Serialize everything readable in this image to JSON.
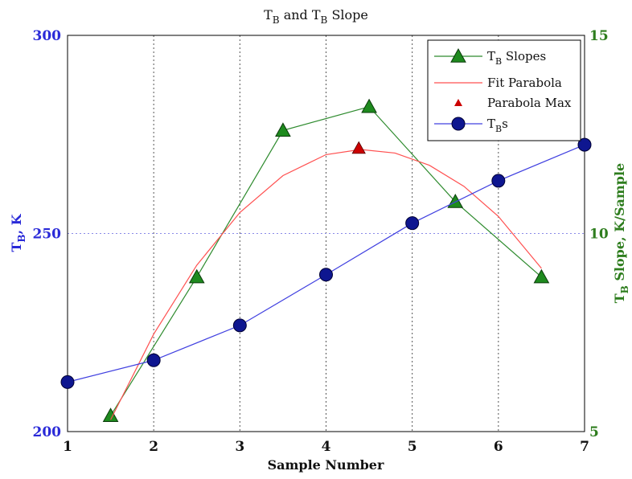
{
  "chart_data": {
    "type": "line",
    "title": {
      "main": "T",
      "sub": "B",
      "mid": " and T",
      "sub2": "B",
      "end": " Slope"
    },
    "xlabel": "Sample Number",
    "ylabel_left": {
      "main": "T",
      "sub": "B",
      "end": ", K"
    },
    "ylabel_right": {
      "main": "T",
      "sub": "B",
      "end": " Slope, K/Sample"
    },
    "xlim": [
      1,
      7
    ],
    "ylim_left": [
      200,
      300
    ],
    "ylim_right": [
      5,
      15
    ],
    "x_ticks": [
      "1",
      "2",
      "3",
      "4",
      "5",
      "6",
      "7"
    ],
    "y_left_ticks": [
      "200",
      "250",
      "300"
    ],
    "y_right_ticks": [
      "5",
      "10",
      "15"
    ],
    "grid": true,
    "legend_position": "top-right",
    "colors": {
      "tbs": "#4040e0",
      "slopes": "#2e8b2e",
      "parabola": "#ff5050",
      "max": "#cc0000",
      "left_axis": "#2a2ad8",
      "right_axis": "#2e7d1e"
    },
    "series": [
      {
        "name": "T_B Slopes",
        "legend": {
          "main": "T",
          "sub": "B",
          "end": " Slopes"
        },
        "axis": "right",
        "marker": "triangle",
        "x": [
          1.5,
          2.5,
          3.5,
          4.5,
          5.5,
          6.5
        ],
        "y": [
          5.4,
          8.9,
          12.6,
          13.2,
          10.8,
          8.9
        ]
      },
      {
        "name": "Fit Parabola",
        "legend": {
          "main": "Fit Parabola",
          "sub": "",
          "end": ""
        },
        "axis": "right",
        "marker": "none",
        "x": [
          1.5,
          2.0,
          2.5,
          3.0,
          3.5,
          4.0,
          4.4,
          4.8,
          5.2,
          5.6,
          6.0,
          6.5
        ],
        "y": [
          5.3,
          7.46,
          9.2,
          10.53,
          11.46,
          11.99,
          12.12,
          12.03,
          11.72,
          11.19,
          10.43,
          9.12
        ]
      },
      {
        "name": "Parabola Max",
        "legend": {
          "main": "Parabola Max",
          "sub": "",
          "end": ""
        },
        "axis": "right",
        "marker": "small-triangle",
        "x": [
          4.38
        ],
        "y": [
          12.15
        ]
      },
      {
        "name": "T_Bs",
        "legend": {
          "main": "T",
          "sub": "B",
          "end": "s"
        },
        "axis": "left",
        "marker": "circle",
        "x": [
          1,
          2,
          3,
          4,
          5,
          6,
          7
        ],
        "y": [
          212.5,
          218,
          226.8,
          239.6,
          252.6,
          263.3,
          272.4
        ]
      }
    ]
  }
}
